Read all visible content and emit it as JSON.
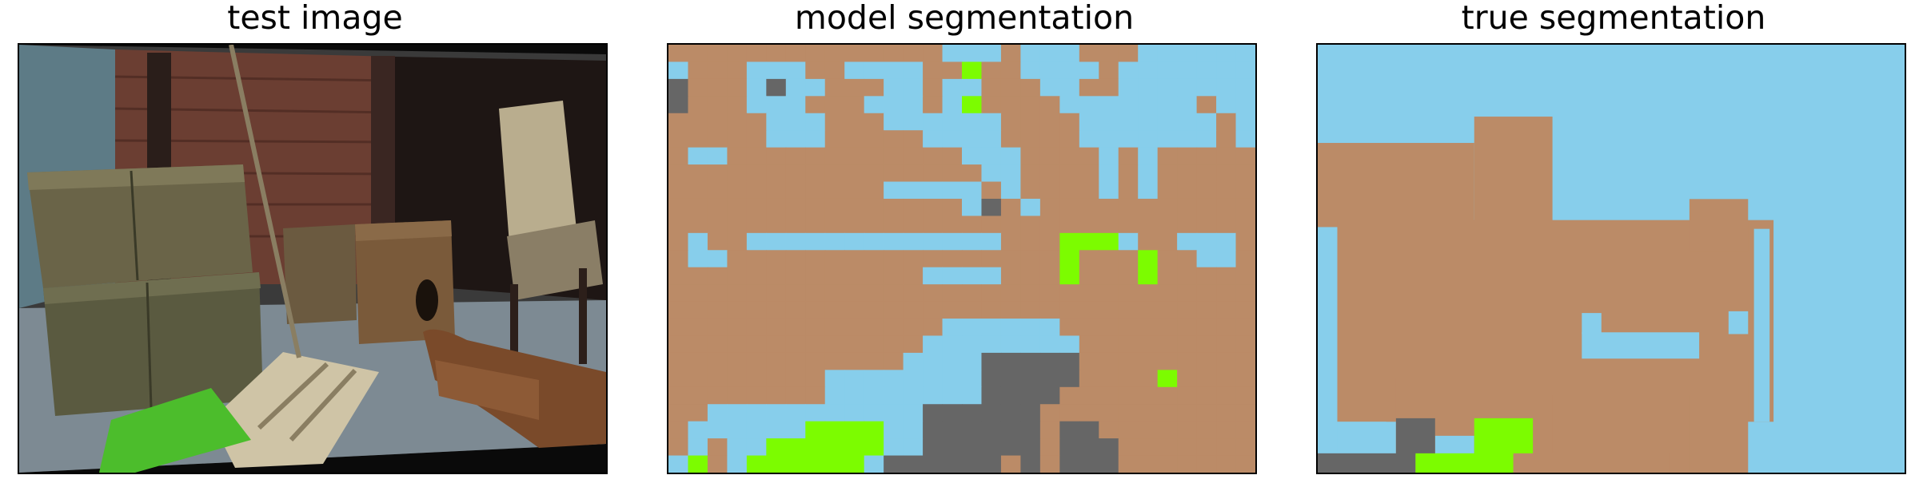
{
  "panels": [
    {
      "title": "test image"
    },
    {
      "title": "model segmentation"
    },
    {
      "title": "true segmentation"
    }
  ],
  "legend_colors": {
    "brown": "#bb8b67",
    "blue": "#87ceeb",
    "gray": "#666666",
    "green": "#7cfc00"
  },
  "model_seg": [
    "BBBBBBBBBBBBBBLLLBLLLBBBLLLLLL",
    "LBBBLLLBBLLLLBBGBBLLLLBLLLLLLL",
    "DBBBLDLLBBBLLBLLBBBLLBBLLLLLLL",
    "DBBBLLLBBBLLLBLGBBBBLLLLLLLBLL",
    "BBBBBLLLBBBLLLLLLBBBBLLLLLLLBL",
    "BBBBBLLLBBBBBLLLLBBBBLLLLLLLBL",
    "BLLBBBBBBBBBBBBLLLBBBBLBLBBBBB",
    "BBBBBBBBBBBBBBBBLLBBBBLBLBBBBB",
    "BBBBBBBBBBBLLLLLBLBBBBLBLBBBBB",
    "BBBBBBBBBBBBBBBLDBLBBBBBBBBBBB",
    "BBBBBBBBBBBBBBBBBBBBBBBBBBBBBB",
    "BLBBLLLLLLLLLLLLLBBBGGGLBBLLLB",
    "BLLBBBBBBBBBBBBBBBBBGBBBGBBLLB",
    "BBBBBBBBBBBBBLLLLBBBGBBBGBBBBB",
    "BBBBBBBBBBBBBBBBBBBBBBBBBBBBBB",
    "BBBBBBBBBBBBBBBBBBBBBBBBBBBBBB",
    "BBBBBBBBBBBBBBLLLLLLBBBBBBBBBB",
    "BBBBBBBBBBBBBLLLLLLLLBBBBBBBBB",
    "BBBBBBBBBBBBLLLLDDDDDBBBBBBBBB",
    "BBBBBBBBLLLLLLLLDDDDDBBBBGBBBB",
    "BBBBBBBBLLLLLLLLDDDDBBBBBBBBBB",
    "BBLLLLLLLLLLLDDDDDDBBBBBBBBBBB",
    "BLLLLLLGGGGLLDDDDDDBDDBBBBBBBB",
    "BLBLLGGGGGGLLDDDDDDBDDDBBBBBBB",
    "LGBLGGGGGGLDDDDDDBDBDDDBBBBBBB"
  ],
  "true_seg_rects": [
    {
      "cls": "B",
      "x": 0,
      "y": 5.6,
      "w": 8,
      "h": 4.8
    },
    {
      "cls": "B",
      "x": 8,
      "y": 4.1,
      "w": 4,
      "h": 6.3
    },
    {
      "cls": "B",
      "x": 1,
      "y": 10,
      "w": 22.3,
      "h": 11.5
    },
    {
      "cls": "B",
      "x": 19,
      "y": 8.8,
      "w": 3,
      "h": 3
    },
    {
      "cls": "B",
      "x": 4,
      "y": 19,
      "w": 18,
      "h": 5.4
    },
    {
      "cls": "B",
      "x": 12,
      "y": 20,
      "w": 7,
      "h": 4.4
    },
    {
      "cls": "L",
      "x": 13.5,
      "y": 15.3,
      "w": 1,
      "h": 1.2
    },
    {
      "cls": "L",
      "x": 13.5,
      "y": 16.4,
      "w": 6,
      "h": 1.5
    },
    {
      "cls": "L",
      "x": 21,
      "y": 15.2,
      "w": 1,
      "h": 1.3
    },
    {
      "cls": "L",
      "x": 22.3,
      "y": 10.5,
      "w": 0.8,
      "h": 11
    },
    {
      "cls": "L",
      "x": 0,
      "y": 10.4,
      "w": 1,
      "h": 14
    },
    {
      "cls": "L",
      "x": 1,
      "y": 21.5,
      "w": 2.5,
      "h": 3
    },
    {
      "cls": "L",
      "x": 6,
      "y": 22.3,
      "w": 2,
      "h": 2.1
    },
    {
      "cls": "D",
      "x": 0,
      "y": 23.3,
      "w": 5,
      "h": 1.1
    },
    {
      "cls": "D",
      "x": 4,
      "y": 21.3,
      "w": 2,
      "h": 2.1
    },
    {
      "cls": "G",
      "x": 8,
      "y": 21.3,
      "w": 3,
      "h": 2.1
    },
    {
      "cls": "G",
      "x": 5,
      "y": 23.3,
      "w": 5,
      "h": 1.1
    },
    {
      "cls": "B",
      "x": 10,
      "y": 23.3,
      "w": 8,
      "h": 1.1
    }
  ]
}
